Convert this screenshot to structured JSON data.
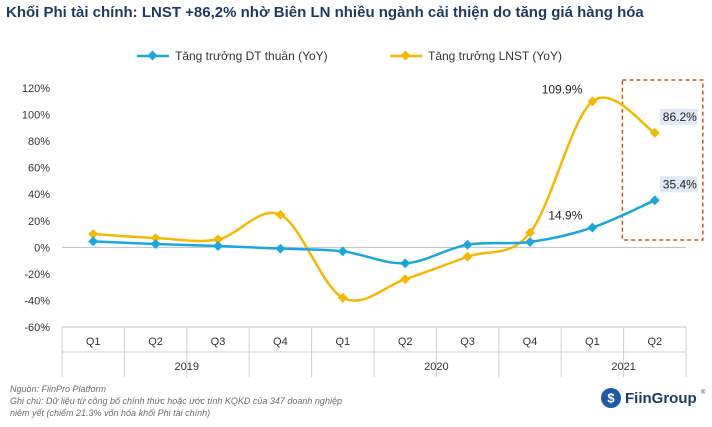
{
  "title": "Khối Phi tài chính: LNST +86,2% nhờ Biên LN nhiều ngành cải thiện do tăng giá hàng hóa",
  "footnotes": {
    "source": "Nguồn: FiinPro Platform",
    "note1": "Ghi chú: Dữ liệu từ công bố chính thức hoặc ước tính KQKD của 347 doanh nghiệp",
    "note2": "niêm yết (chiếm 21.3% vốn hóa khối Phi tài chính)"
  },
  "logo": {
    "text": "FiinGroup",
    "trademark": "®"
  },
  "colors": {
    "series1": "#1aa7dd",
    "series2": "#f5b800",
    "highlight": "#c55a11",
    "label_bg": "#e1e8f3"
  },
  "chart_data": {
    "type": "line",
    "categories": [
      "Q1",
      "Q2",
      "Q3",
      "Q4",
      "Q1",
      "Q2",
      "Q3",
      "Q4",
      "Q1",
      "Q2"
    ],
    "groups": [
      {
        "label": "2019",
        "count": 4
      },
      {
        "label": "2020",
        "count": 4
      },
      {
        "label": "2021",
        "count": 2
      }
    ],
    "series": [
      {
        "name": "Tăng trưởng DT thuần (YoY)",
        "values": [
          4.5,
          2.5,
          1.0,
          -1.0,
          -3.0,
          -12.0,
          2.0,
          4.0,
          14.9,
          35.4
        ]
      },
      {
        "name": "Tăng trưởng LNST (YoY)",
        "values": [
          10.0,
          7.0,
          6.0,
          24.5,
          -38.0,
          -24.0,
          -7.0,
          11.0,
          109.9,
          86.2
        ]
      }
    ],
    "data_labels": [
      {
        "series": 0,
        "index": 8,
        "text": "14.9%"
      },
      {
        "series": 0,
        "index": 9,
        "text": "35.4%"
      },
      {
        "series": 1,
        "index": 8,
        "text": "109.9%"
      },
      {
        "series": 1,
        "index": 9,
        "text": "86.2%"
      }
    ],
    "yticks": [
      "120%",
      "100%",
      "80%",
      "60%",
      "40%",
      "20%",
      "0%",
      "-20%",
      "-40%",
      "-60%"
    ],
    "ylim": [
      -60,
      120
    ],
    "grid": false,
    "legend_position": "top",
    "line_style": "smooth"
  }
}
